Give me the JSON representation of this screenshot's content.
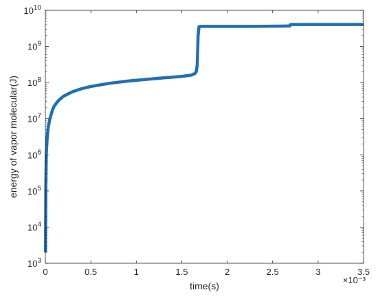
{
  "chart_data": {
    "type": "line",
    "title": "",
    "xlabel": "time(s)",
    "ylabel": "energy of vapor molecular(J)",
    "x_multiplier_label": "×10⁻³",
    "x_scale": 0.001,
    "xlim": [
      0,
      3.5
    ],
    "ylim": [
      1000,
      10000000000
    ],
    "y_scale": "log",
    "grid": false,
    "legend": "none",
    "line_color": "#1f6fb4",
    "x_ticks": [
      {
        "value": 0,
        "label": "0"
      },
      {
        "value": 0.5,
        "label": "0.5"
      },
      {
        "value": 1,
        "label": "1"
      },
      {
        "value": 1.5,
        "label": "1.5"
      },
      {
        "value": 2,
        "label": "2"
      },
      {
        "value": 2.5,
        "label": "2.5"
      },
      {
        "value": 3,
        "label": "3"
      },
      {
        "value": 3.5,
        "label": "3.5"
      }
    ],
    "y_ticks": [
      {
        "value": 1000,
        "base": "10",
        "exp": "3"
      },
      {
        "value": 10000,
        "base": "10",
        "exp": "4"
      },
      {
        "value": 100000,
        "base": "10",
        "exp": "5"
      },
      {
        "value": 1000000,
        "base": "10",
        "exp": "6"
      },
      {
        "value": 10000000,
        "base": "10",
        "exp": "7"
      },
      {
        "value": 100000000,
        "base": "10",
        "exp": "8"
      },
      {
        "value": 1000000000,
        "base": "10",
        "exp": "9"
      },
      {
        "value": 10000000000,
        "base": "10",
        "exp": "10"
      }
    ],
    "series": [
      {
        "x": [
          0.002,
          0.005,
          0.01,
          0.02,
          0.03,
          0.05,
          0.08,
          0.1,
          0.15,
          0.2,
          0.3,
          0.4,
          0.5,
          0.7,
          0.9,
          1.1,
          1.3,
          1.5,
          1.6,
          1.64,
          1.66,
          1.67,
          1.675,
          1.68,
          1.69,
          1.7,
          1.8,
          2.0,
          2.3,
          2.6,
          2.69,
          2.695,
          2.7,
          3.0,
          3.5
        ],
        "y": [
          2000,
          100000,
          1000000,
          3000000,
          5500000,
          10000000,
          18000000,
          23000000,
          33000000,
          42000000,
          56000000,
          68000000,
          78000000,
          95000000,
          110000000,
          122000000,
          135000000,
          148000000,
          160000000,
          175000000,
          200000000,
          300000000,
          700000000,
          2000000000,
          3500000000,
          3600000000,
          3600000000,
          3600000000,
          3600000000,
          3650000000,
          3700000000,
          4000000000,
          4050000000,
          4050000000,
          4050000000
        ]
      }
    ]
  }
}
